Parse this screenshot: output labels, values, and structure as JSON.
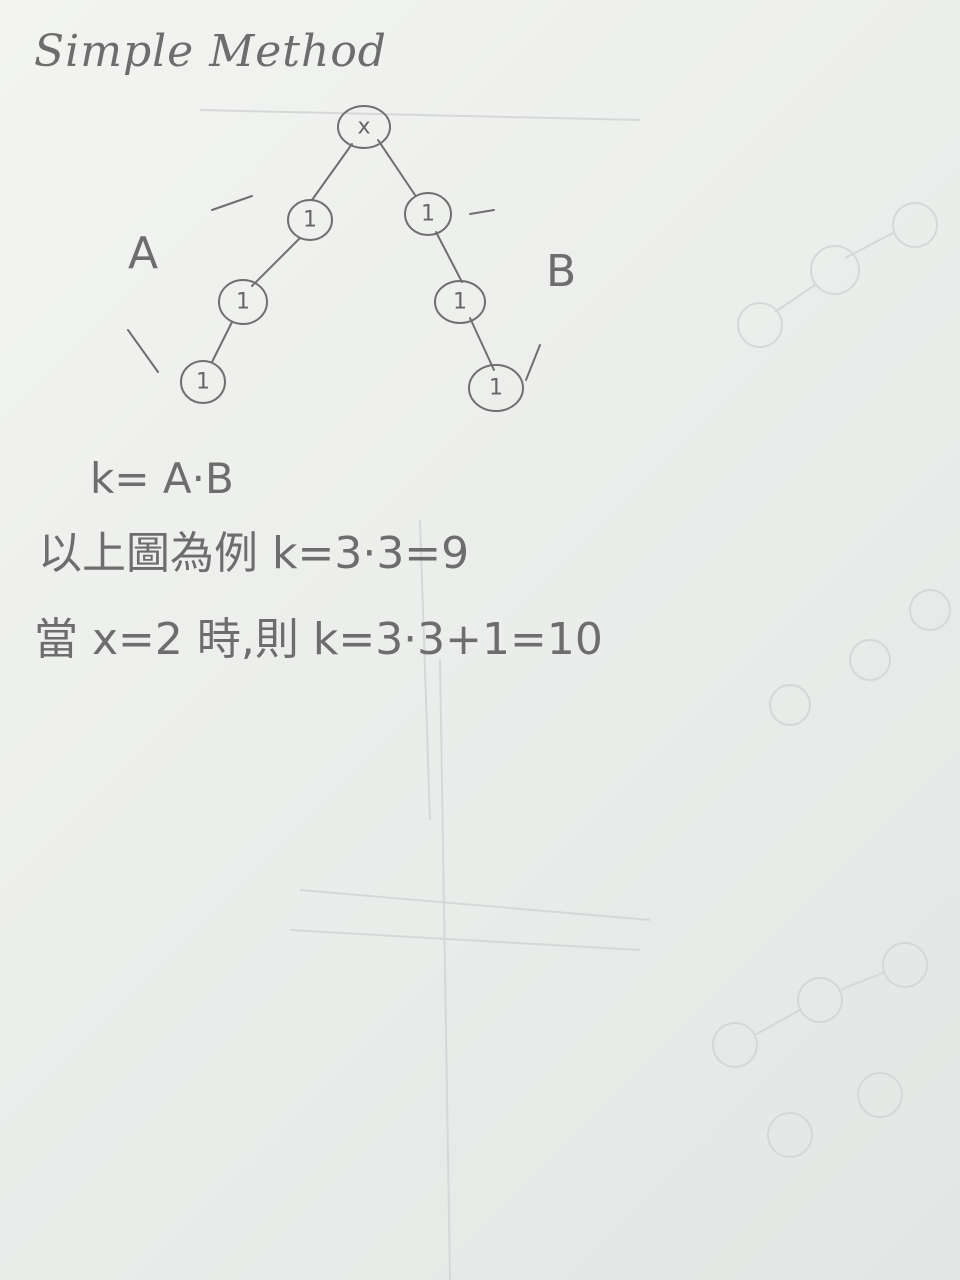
{
  "title": "Simple Method",
  "tree": {
    "root_label": "x",
    "node_label": "1"
  },
  "labels": {
    "a": "A",
    "b": "B"
  },
  "formula": "k= A·B",
  "example_line": "以上圖為例 k=3·3=9",
  "case_line": "當 x=2 時,則 k=3·3+1=10"
}
